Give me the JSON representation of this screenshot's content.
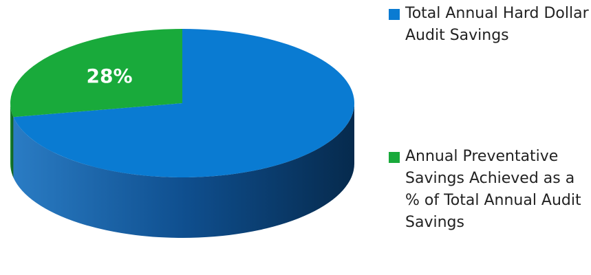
{
  "chart_data": {
    "type": "pie",
    "series": [
      {
        "name": "Total Annual Hard Dollar Audit Savings",
        "color": "#0a7bd2",
        "values": [
          72
        ],
        "value_labels": [
          null
        ]
      },
      {
        "name": "Annual Preventative Savings Achieved as a % of Total Annual Audit Savings",
        "color": "#19aa3b",
        "values": [
          28
        ],
        "value_labels": [
          "28%"
        ]
      }
    ]
  }
}
